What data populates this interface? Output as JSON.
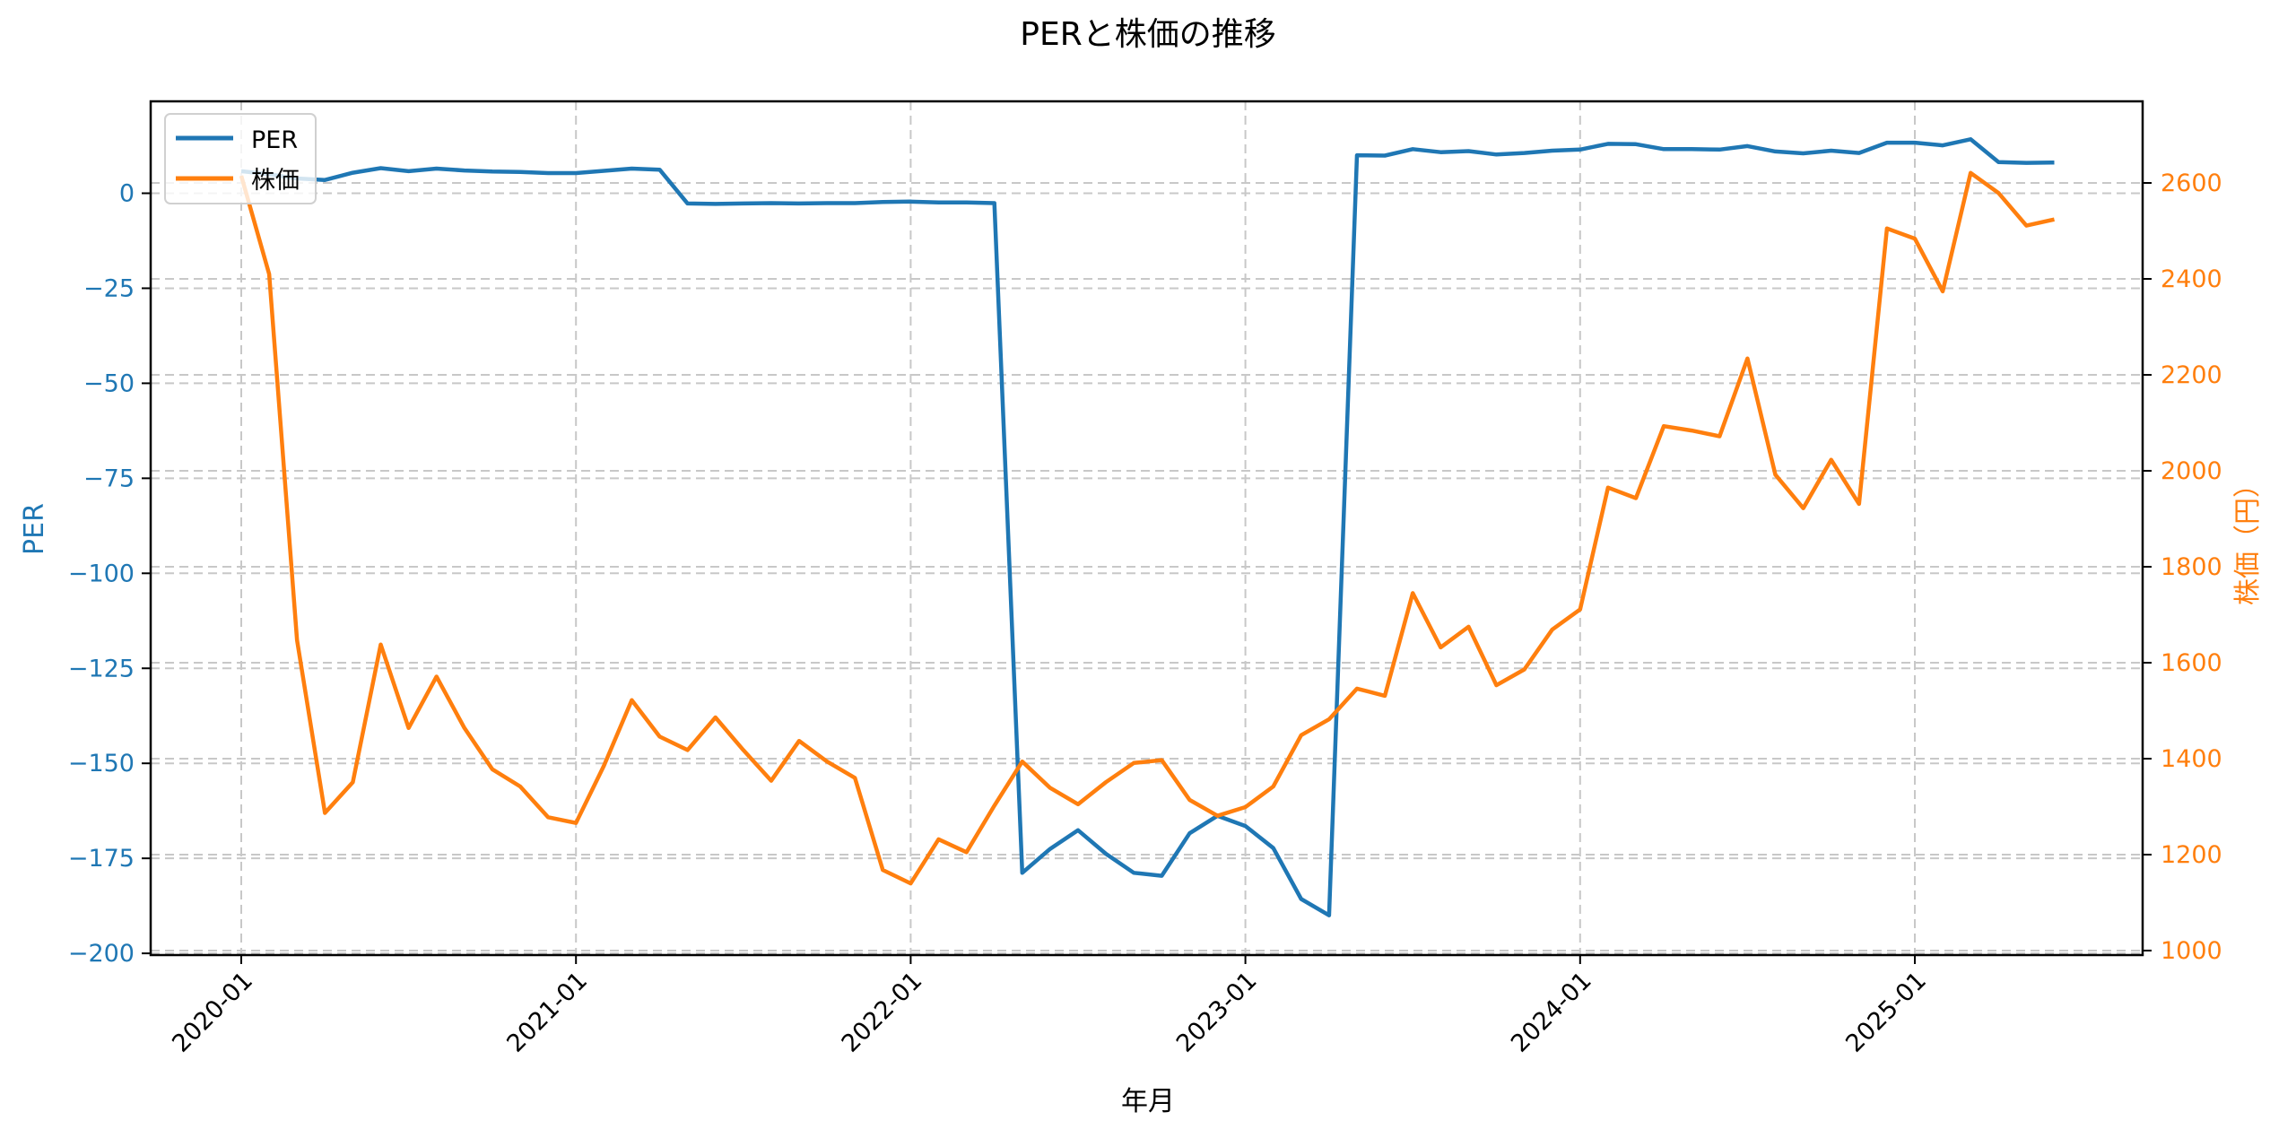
{
  "chart_data": {
    "type": "line",
    "title": "PERと株価の推移",
    "xlabel": "年月",
    "ylabel_left": "PER",
    "ylabel_right": "株価（円）",
    "x": [
      "2020-01",
      "2020-02",
      "2020-03",
      "2020-04",
      "2020-05",
      "2020-06",
      "2020-07",
      "2020-08",
      "2020-09",
      "2020-10",
      "2020-11",
      "2020-12",
      "2021-01",
      "2021-02",
      "2021-03",
      "2021-04",
      "2021-05",
      "2021-06",
      "2021-07",
      "2021-08",
      "2021-09",
      "2021-10",
      "2021-11",
      "2021-12",
      "2022-01",
      "2022-02",
      "2022-03",
      "2022-04",
      "2022-05",
      "2022-06",
      "2022-07",
      "2022-08",
      "2022-09",
      "2022-10",
      "2022-11",
      "2022-12",
      "2023-01",
      "2023-02",
      "2023-03",
      "2023-04",
      "2023-05",
      "2023-06",
      "2023-07",
      "2023-08",
      "2023-09",
      "2023-10",
      "2023-11",
      "2023-12",
      "2024-01",
      "2024-02",
      "2024-03",
      "2024-04",
      "2024-05",
      "2024-06",
      "2024-07",
      "2024-08",
      "2024-09",
      "2024-10",
      "2024-11",
      "2024-12",
      "2025-01",
      "2025-02",
      "2025-03",
      "2025-04",
      "2025-05",
      "2025-06"
    ],
    "series": [
      {
        "name": "PER",
        "axis": "left",
        "color": "#1f77b4",
        "values": [
          5.8,
          5.0,
          3.9,
          3.5,
          5.4,
          6.6,
          5.8,
          6.5,
          6.0,
          5.7,
          5.6,
          5.3,
          5.3,
          5.9,
          6.5,
          6.2,
          -2.7,
          -2.8,
          -2.7,
          -2.6,
          -2.7,
          -2.6,
          -2.6,
          -2.3,
          -2.2,
          -2.4,
          -2.4,
          -2.6,
          -178.8,
          -172.5,
          -167.6,
          -173.8,
          -178.8,
          -179.6,
          -168.4,
          -163.8,
          -166.5,
          -172.3,
          -185.7,
          -190.0,
          10.0,
          9.9,
          11.6,
          10.8,
          11.1,
          10.2,
          10.6,
          11.2,
          11.5,
          13.0,
          12.9,
          11.6,
          11.6,
          11.5,
          12.4,
          11.0,
          10.5,
          11.2,
          10.6,
          13.3,
          13.3,
          12.6,
          14.2,
          8.2,
          8.0,
          8.1
        ]
      },
      {
        "name": "株価",
        "axis": "right",
        "color": "#ff7f0e",
        "values": [
          2615,
          2410,
          1647,
          1287,
          1351,
          1638,
          1464,
          1571,
          1464,
          1378,
          1342,
          1278,
          1266,
          1385,
          1522,
          1446,
          1418,
          1486,
          1418,
          1354,
          1437,
          1394,
          1360,
          1168,
          1140,
          1232,
          1205,
          1302,
          1394,
          1339,
          1305,
          1351,
          1391,
          1397,
          1314,
          1281,
          1299,
          1342,
          1449,
          1482,
          1546,
          1531,
          1745,
          1632,
          1675,
          1553,
          1586,
          1669,
          1711,
          1965,
          1943,
          2093,
          2084,
          2072,
          2234,
          1992,
          1922,
          2023,
          1931,
          2505,
          2484,
          2374,
          2621,
          2579,
          2511,
          2524
        ]
      }
    ],
    "xticks": [
      "2020-01",
      "2021-01",
      "2022-01",
      "2023-01",
      "2024-01",
      "2025-01"
    ],
    "yticks_left": [
      0,
      -25,
      -50,
      -75,
      -100,
      -125,
      -150,
      -175,
      -200
    ],
    "yticks_right": [
      1000,
      1200,
      1400,
      1600,
      1800,
      2000,
      2200,
      2400,
      2600
    ],
    "ylim_left": [
      -200.5,
      24
    ],
    "ylim_right": [
      997,
      2760
    ],
    "grid": true,
    "legend": {
      "position": "upper left",
      "entries": [
        "PER",
        "株価"
      ]
    }
  }
}
